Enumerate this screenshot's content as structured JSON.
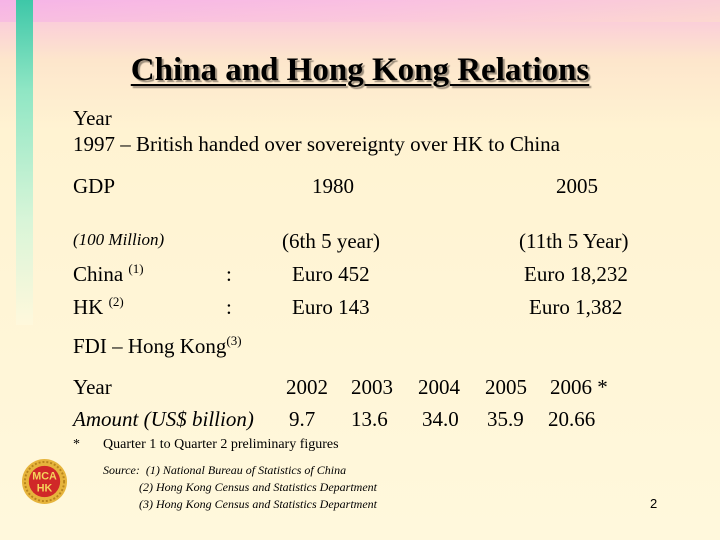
{
  "title": "China and Hong Kong Relations",
  "year_label": "Year",
  "year_line": "1997 – British handed over sovereignty over HK to China",
  "gdp": {
    "label": "GDP",
    "col1980": "1980",
    "col2005": "2005",
    "unit": "(100 Million)",
    "plan1980": "(6th 5 year)",
    "plan2005": "(11th 5 Year)",
    "rows": [
      {
        "name": "China",
        "note": "(1)",
        "colon": ":",
        "v1980": "Euro 452",
        "v2005": "Euro 18,232"
      },
      {
        "name": "HK",
        "note": "(2)",
        "colon": ":",
        "v1980": "Euro 143",
        "v2005": "Euro 1,382"
      }
    ]
  },
  "fdi": {
    "heading": "FDI – Hong Kong",
    "note": "(3)",
    "year_label": "Year",
    "amount_label": "Amount (US$ billion)",
    "years": [
      "2002",
      "2003",
      "2004",
      "2005",
      "2006 *"
    ],
    "amounts": [
      "9.7",
      "13.6",
      "34.0",
      "35.9",
      "20.66"
    ]
  },
  "footnote": {
    "mark": "*",
    "text": "Quarter 1 to Quarter 2 preliminary figures"
  },
  "source": {
    "line1": "Source:  (1) National Bureau of Statistics of China",
    "line2": "            (2) Hong Kong Census and Statistics Department",
    "line3": "            (3) Hong Kong Census and Statistics Department"
  },
  "logo": {
    "text_top": "MCA",
    "text_bottom": "HK"
  },
  "page_number": "2",
  "colors": {
    "accent_green": "#3ec7a8",
    "accent_pink": "#f6b0e6",
    "logo_red": "#d02828",
    "logo_gold": "#e6b43c"
  }
}
